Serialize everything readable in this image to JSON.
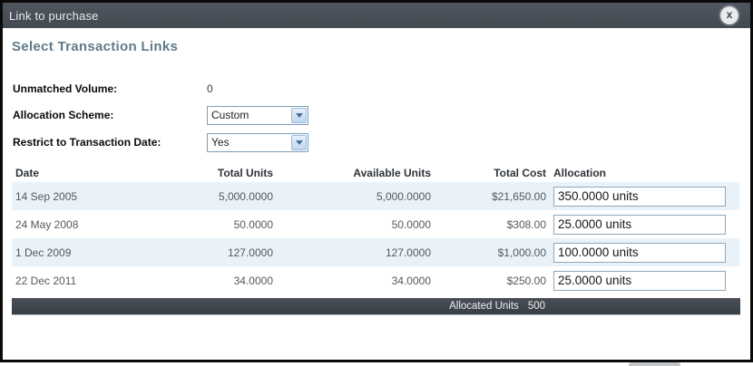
{
  "dialog": {
    "title": "Link to purchase",
    "close_glyph": "x",
    "heading": "Select Transaction Links"
  },
  "form": {
    "unmatched_volume": {
      "label": "Unmatched Volume:",
      "value": "0"
    },
    "allocation_scheme": {
      "label": "Allocation Scheme:",
      "value": "Custom"
    },
    "restrict_to_transaction_date": {
      "label": "Restrict to Transaction Date:",
      "value": "Yes"
    }
  },
  "table": {
    "columns": [
      "Date",
      "Total Units",
      "Available Units",
      "Total Cost",
      "Allocation"
    ],
    "rows": [
      {
        "date": "14 Sep 2005",
        "total_units": "5,000.0000",
        "available_units": "5,000.0000",
        "total_cost": "$21,650.00",
        "allocation": "350.0000 units"
      },
      {
        "date": "24 May 2008",
        "total_units": "50.0000",
        "available_units": "50.0000",
        "total_cost": "$308.00",
        "allocation": "25.0000 units"
      },
      {
        "date": "1 Dec 2009",
        "total_units": "127.0000",
        "available_units": "127.0000",
        "total_cost": "$1,000.00",
        "allocation": "100.0000 units"
      },
      {
        "date": "22 Dec 2011",
        "total_units": "34.0000",
        "available_units": "34.0000",
        "total_cost": "$250.00",
        "allocation": "25.0000 units"
      }
    ],
    "footer": {
      "label": "Allocated Units",
      "value": "500"
    }
  },
  "icons": {
    "close": "close-icon",
    "dropdown_arrow": "chevron-down-icon"
  },
  "colors": {
    "titlebar_bg": "#474d55",
    "footer_bg": "#3b4148",
    "row_alt_bg": "#e9f2f8",
    "heading_text": "#5e7b89",
    "select_border": "#7f9db9",
    "input_border": "#8ba7c2",
    "dialog_border": "#0a0a0a"
  }
}
